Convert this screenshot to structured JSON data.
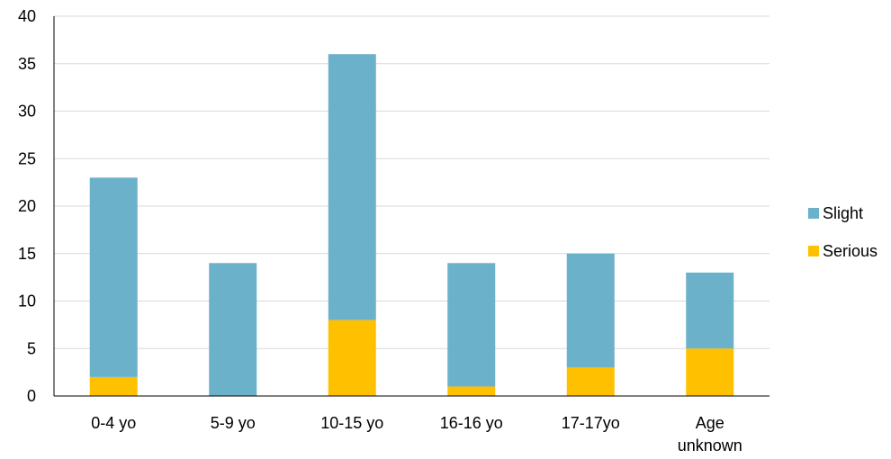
{
  "chart_data": {
    "type": "bar",
    "stacked": true,
    "categories": [
      "0-4 yo",
      "5-9 yo",
      "10-15 yo",
      "16-16 yo",
      "17-17yo",
      "Age unknown"
    ],
    "category_lines": [
      [
        "0-4 yo"
      ],
      [
        "5-9 yo"
      ],
      [
        "10-15 yo"
      ],
      [
        "16-16 yo"
      ],
      [
        "17-17yo"
      ],
      [
        "Age",
        "unknown"
      ]
    ],
    "series": [
      {
        "name": "Serious",
        "color": "#FFC000",
        "values": [
          2,
          0,
          8,
          1,
          3,
          5
        ]
      },
      {
        "name": "Slight",
        "color": "#6BB1C9",
        "values": [
          21,
          14,
          28,
          13,
          12,
          8
        ]
      }
    ],
    "title": "",
    "xlabel": "",
    "ylabel": "",
    "ylim": [
      0,
      40
    ],
    "yticks": [
      0,
      5,
      10,
      15,
      20,
      25,
      30,
      35,
      40
    ],
    "grid": true,
    "legend_position": "right",
    "legend_order": [
      "Slight",
      "Serious"
    ]
  }
}
